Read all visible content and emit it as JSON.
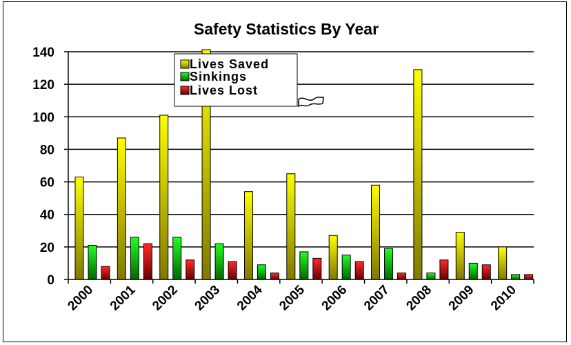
{
  "chart_data": {
    "type": "bar",
    "title": "Safety Statistics By Year",
    "xlabel": "",
    "ylabel": "",
    "ylim": [
      0,
      140
    ],
    "yticks": [
      "0",
      "20",
      "40",
      "60",
      "80",
      "100",
      "120",
      "140"
    ],
    "categories": [
      "2000",
      "2001",
      "2002",
      "2003",
      "2004",
      "2005",
      "2006",
      "2007",
      "2008",
      "2009",
      "2010"
    ],
    "series": [
      {
        "name": "Lives Saved",
        "values": [
          63,
          87,
          101,
          142,
          54,
          65,
          27,
          58,
          129,
          29,
          20
        ]
      },
      {
        "name": "Sinkings",
        "values": [
          21,
          26,
          26,
          22,
          9,
          17,
          15,
          19,
          4,
          10,
          3
        ]
      },
      {
        "name": "Lives Lost",
        "values": [
          8,
          22,
          12,
          11,
          4,
          13,
          11,
          4,
          12,
          9,
          3
        ]
      }
    ],
    "grid": true,
    "legend_position": "top-center"
  },
  "colors": {
    "lives_saved": "#ffff00",
    "sinkings": "#00cc00",
    "lives_lost": "#dd0000"
  }
}
